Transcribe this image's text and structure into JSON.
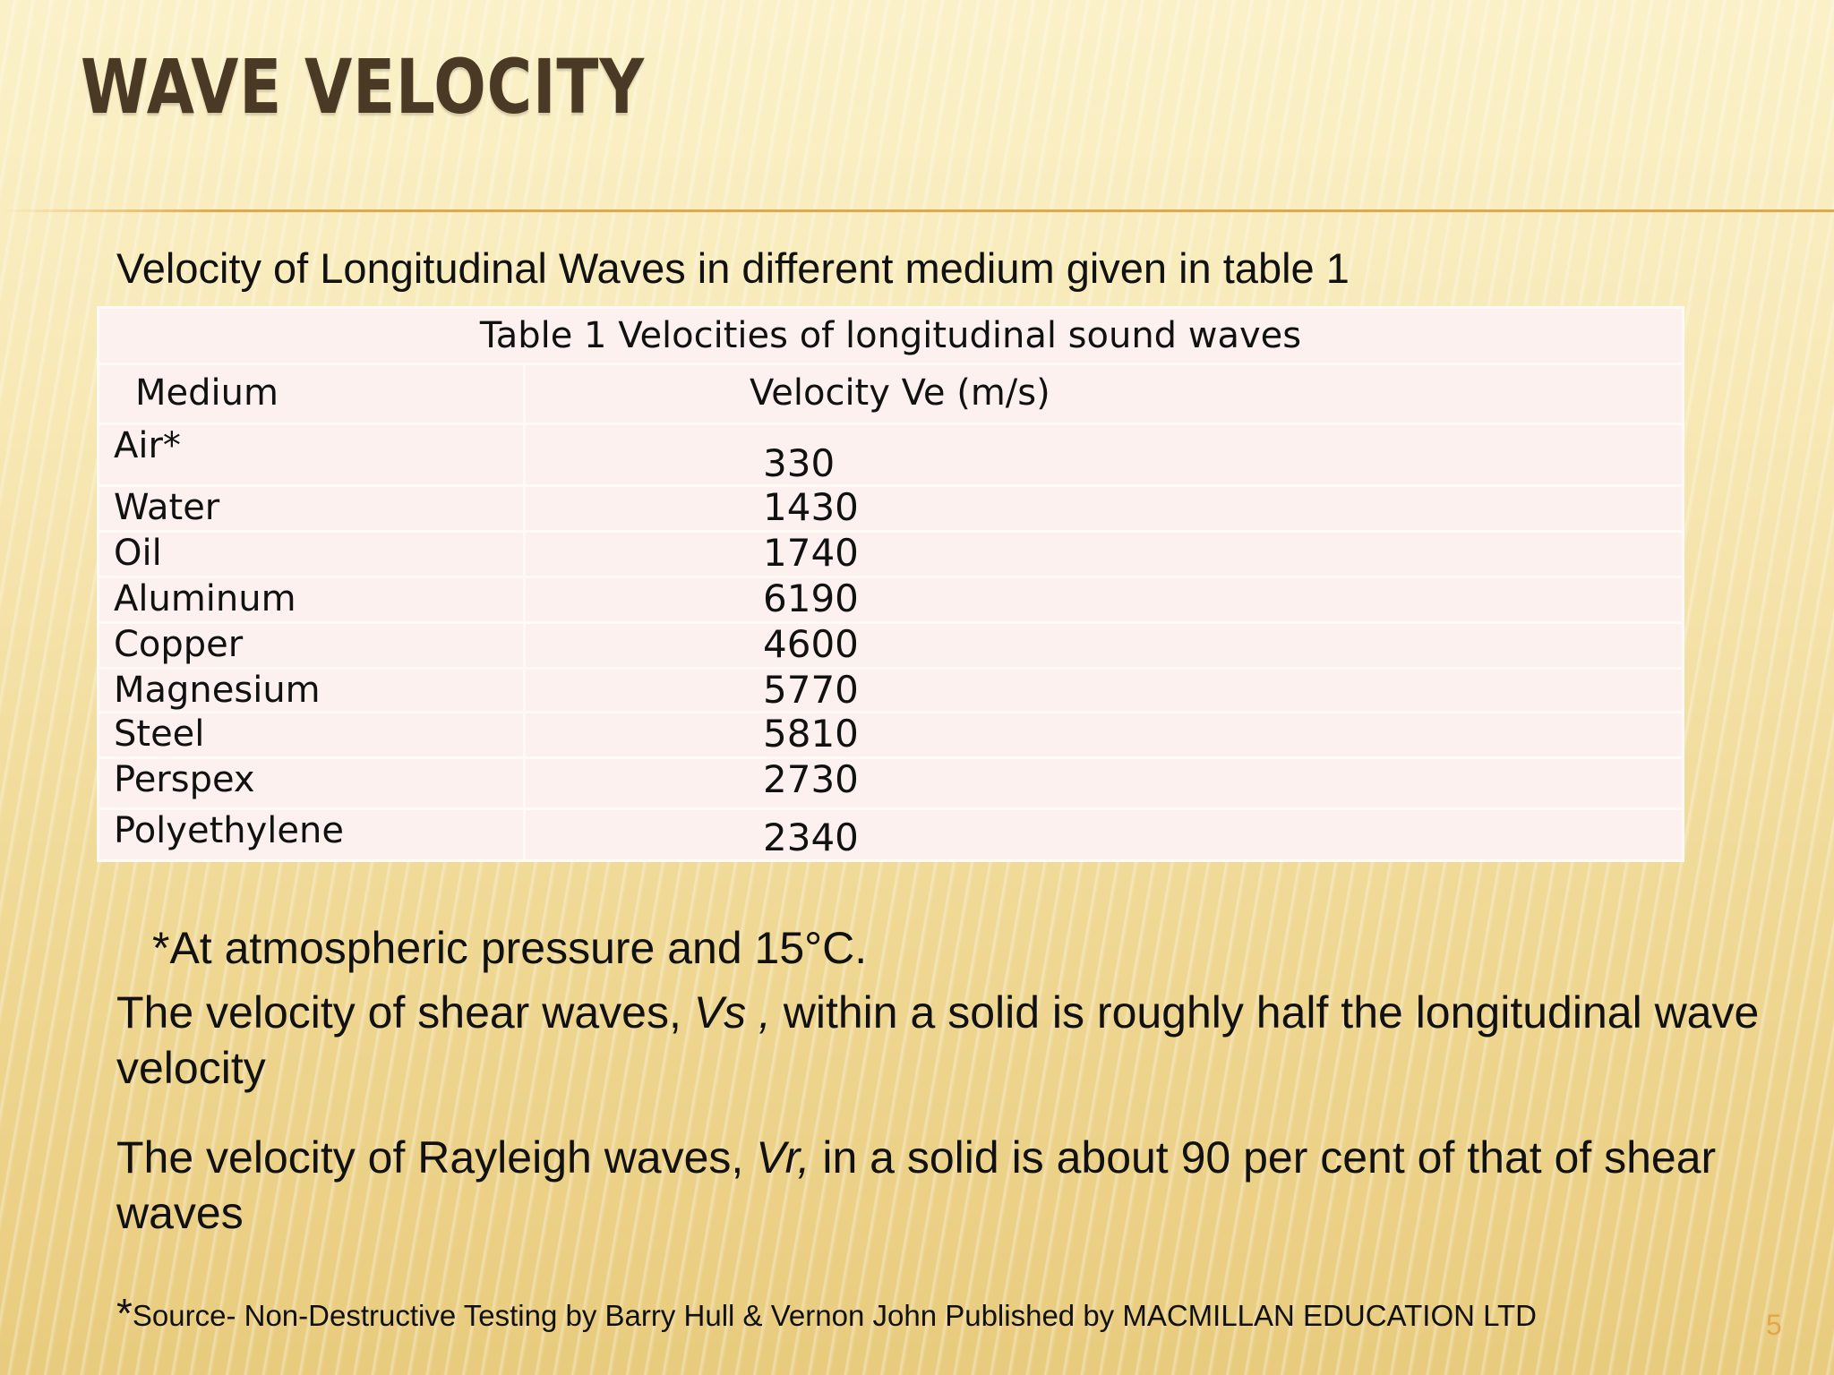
{
  "slide": {
    "title": "WAVE VELOCITY",
    "intro": "Velocity of Longitudinal Waves in different medium given in table 1",
    "page_number": "5"
  },
  "table": {
    "caption": "Table 1  Velocities of longitudinal sound waves",
    "headers": [
      "Medium",
      "Velocity Ve (m/s)"
    ],
    "rows": [
      {
        "medium": "Air*",
        "velocity": "330"
      },
      {
        "medium": "Water",
        "velocity": "1430"
      },
      {
        "medium": "Oil",
        "velocity": "1740"
      },
      {
        "medium": "Aluminum",
        "velocity": "6190"
      },
      {
        "medium": "Copper",
        "velocity": "4600"
      },
      {
        "medium": "Magnesium",
        "velocity": "5770"
      },
      {
        "medium": "Steel",
        "velocity": "5810"
      },
      {
        "medium": "Perspex",
        "velocity": "2730"
      },
      {
        "medium": "Polyethylene",
        "velocity": "2340"
      }
    ]
  },
  "notes": {
    "asterisk_note": "*At atmospheric pressure  and  15°C.",
    "shear": {
      "before": "The velocity of shear waves, ",
      "symbol": "Vs ,",
      "after": " within a solid is roughly half the longitudinal wave velocity"
    },
    "rayleigh": {
      "before": "The velocity of Rayleigh waves, ",
      "symbol": "Vr,",
      "after": " in a solid is about  90 per  cent  of  that of shear waves"
    },
    "source_star": "*",
    "source": "Source- Non-Destructive Testing by Barry Hull & Vernon John Published by MACMILLAN EDUCATION LTD"
  },
  "colors": {
    "title": "#4a3a25",
    "accent_rule": "#e0a84a",
    "table_fill": "#fdf1ef"
  }
}
